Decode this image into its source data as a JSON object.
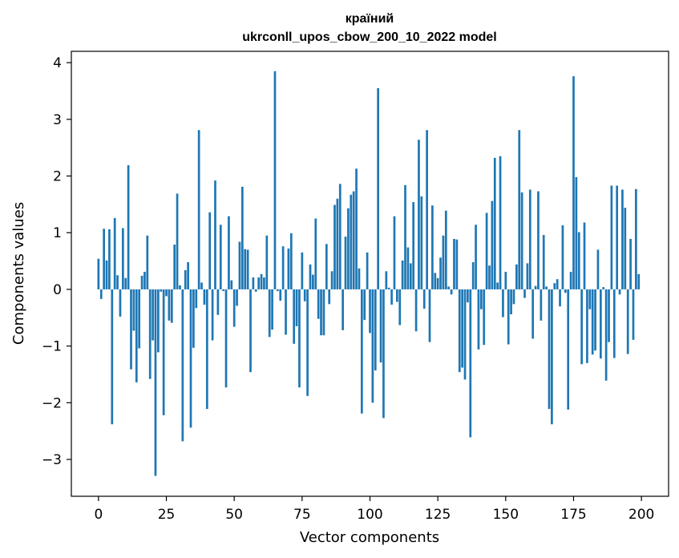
{
  "chart_data": {
    "type": "bar",
    "title": "країний",
    "subtitle": "ukrconll_upos_cbow_200_10_2022 model",
    "xlabel": "Vector components",
    "ylabel": "Components values",
    "xlim": [
      -10,
      210
    ],
    "ylim": [
      -3.65,
      4.2
    ],
    "xticks": [
      0,
      25,
      50,
      75,
      100,
      125,
      150,
      175,
      200
    ],
    "xtick_labels": [
      "0",
      "25",
      "50",
      "75",
      "100",
      "125",
      "150",
      "175",
      "200"
    ],
    "yticks": [
      -3,
      -2,
      -1,
      0,
      1,
      2,
      3,
      4
    ],
    "ytick_labels": [
      "−3",
      "−2",
      "−1",
      "0",
      "1",
      "2",
      "3",
      "4"
    ],
    "grid": false,
    "bar_color": "#1f77b4",
    "x": [
      0,
      1,
      2,
      3,
      4,
      5,
      6,
      7,
      8,
      9,
      10,
      11,
      12,
      13,
      14,
      15,
      16,
      17,
      18,
      19,
      20,
      21,
      22,
      23,
      24,
      25,
      26,
      27,
      28,
      29,
      30,
      31,
      32,
      33,
      34,
      35,
      36,
      37,
      38,
      39,
      40,
      41,
      42,
      43,
      44,
      45,
      46,
      47,
      48,
      49,
      50,
      51,
      52,
      53,
      54,
      55,
      56,
      57,
      58,
      59,
      60,
      61,
      62,
      63,
      64,
      65,
      66,
      67,
      68,
      69,
      70,
      71,
      72,
      73,
      74,
      75,
      76,
      77,
      78,
      79,
      80,
      81,
      82,
      83,
      84,
      85,
      86,
      87,
      88,
      89,
      90,
      91,
      92,
      93,
      94,
      95,
      96,
      97,
      98,
      99,
      100,
      101,
      102,
      103,
      104,
      105,
      106,
      107,
      108,
      109,
      110,
      111,
      112,
      113,
      114,
      115,
      116,
      117,
      118,
      119,
      120,
      121,
      122,
      123,
      124,
      125,
      126,
      127,
      128,
      129,
      130,
      131,
      132,
      133,
      134,
      135,
      136,
      137,
      138,
      139,
      140,
      141,
      142,
      143,
      144,
      145,
      146,
      147,
      148,
      149,
      150,
      151,
      152,
      153,
      154,
      155,
      156,
      157,
      158,
      159,
      160,
      161,
      162,
      163,
      164,
      165,
      166,
      167,
      168,
      169,
      170,
      171,
      172,
      173,
      174,
      175,
      176,
      177,
      178,
      179,
      180,
      181,
      182,
      183,
      184,
      185,
      186,
      187,
      188,
      189,
      190,
      191,
      192,
      193,
      194,
      195,
      196,
      197,
      198,
      199
    ],
    "values": [
      0.54,
      -0.17,
      1.07,
      0.51,
      1.06,
      -2.38,
      1.26,
      0.25,
      -0.48,
      1.08,
      0.2,
      2.19,
      -1.41,
      -0.73,
      -1.64,
      -1.04,
      0.24,
      0.31,
      0.95,
      -1.58,
      -0.9,
      -3.29,
      -1.11,
      -0.04,
      -2.22,
      -0.12,
      -0.55,
      -0.59,
      0.79,
      1.69,
      0.07,
      -2.68,
      0.34,
      0.48,
      -2.44,
      -1.03,
      -0.33,
      2.81,
      0.12,
      -0.27,
      -2.11,
      1.36,
      -0.9,
      1.92,
      -0.45,
      1.14,
      -0.03,
      -1.73,
      1.29,
      0.16,
      -0.66,
      -0.29,
      0.84,
      1.81,
      0.71,
      0.7,
      -1.46,
      0.21,
      -0.04,
      0.21,
      0.27,
      0.21,
      0.95,
      -0.84,
      -0.71,
      3.85,
      -0.03,
      -0.2,
      0.76,
      -0.8,
      0.72,
      0.99,
      -0.96,
      -0.65,
      -1.73,
      0.65,
      -0.21,
      -1.88,
      0.44,
      0.26,
      1.25,
      -0.52,
      -0.81,
      -0.81,
      0.8,
      -0.26,
      0.32,
      1.49,
      1.6,
      1.86,
      -0.72,
      0.93,
      1.43,
      1.67,
      1.73,
      2.13,
      0.37,
      -2.19,
      -0.54,
      0.65,
      -0.77,
      -2.0,
      -1.43,
      3.55,
      -1.29,
      -2.27,
      0.32,
      0.03,
      -0.27,
      1.29,
      -0.22,
      -0.63,
      0.51,
      1.84,
      0.74,
      0.46,
      1.54,
      -0.74,
      2.64,
      1.64,
      -0.34,
      2.81,
      -0.93,
      1.48,
      0.29,
      0.2,
      0.56,
      0.95,
      1.39,
      0.05,
      -0.09,
      0.89,
      0.88,
      -1.46,
      -1.38,
      -1.59,
      -0.23,
      -2.61,
      0.48,
      1.14,
      -1.06,
      -0.35,
      -0.98,
      1.35,
      0.42,
      1.56,
      2.32,
      0.12,
      2.35,
      -0.49,
      0.31,
      -0.97,
      -0.44,
      -0.26,
      0.44,
      2.81,
      1.71,
      -0.15,
      0.46,
      1.76,
      -0.87,
      0.06,
      1.73,
      -0.55,
      0.96,
      0.05,
      -2.11,
      -2.38,
      0.11,
      0.18,
      -0.3,
      1.13,
      -0.06,
      -2.12,
      0.31,
      3.76,
      1.98,
      1.01,
      -1.32,
      1.18,
      -1.3,
      -0.35,
      -1.15,
      -1.08,
      0.7,
      -1.22,
      0.04,
      -1.61,
      -0.93,
      1.83,
      -1.21,
      1.83,
      -0.09,
      1.76,
      1.44,
      -1.14,
      0.89,
      -0.89,
      1.77,
      0.27
    ]
  }
}
